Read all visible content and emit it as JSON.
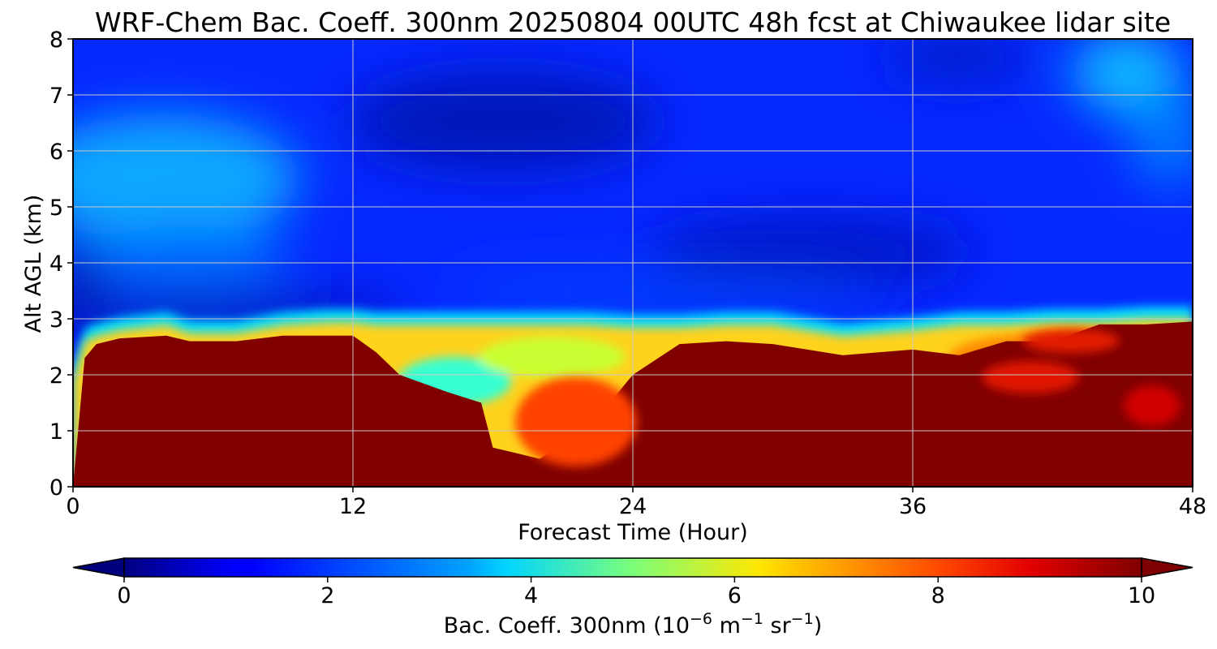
{
  "chart_data": {
    "type": "heatmap",
    "title": "WRF-Chem Bac. Coeff. 300nm  20250804 00UTC 48h fcst at Chiwaukee lidar site",
    "xlabel": "Forecast Time (Hour)",
    "ylabel": "Alt AGL (km)",
    "xlim": [
      0,
      48
    ],
    "ylim": [
      0,
      8
    ],
    "xticks": [
      "0",
      "12",
      "24",
      "36",
      "48"
    ],
    "yticks": [
      "0",
      "1",
      "2",
      "3",
      "4",
      "5",
      "6",
      "7",
      "8"
    ],
    "grid": true,
    "colormap": "jet",
    "colorbar": {
      "label_main": "Bac. Coeff. 300nm  (10",
      "label_exp1": "−6",
      "label_mid": " m",
      "label_exp2": "−1",
      "label_mid2": " sr",
      "label_exp3": "−1",
      "label_end": ")",
      "range": [
        0,
        10
      ],
      "ticks": [
        "0",
        "2",
        "4",
        "6",
        "8",
        "10"
      ],
      "extend": "both"
    },
    "field": {
      "hours": [
        0,
        0.5,
        1,
        2,
        4,
        5,
        7,
        9,
        11,
        12,
        13,
        14,
        16,
        17.5,
        18,
        20,
        22,
        24,
        26,
        28,
        30,
        33,
        36,
        38,
        40,
        42,
        44,
        46,
        48
      ],
      "altitudes_km": [
        0,
        0.5,
        1,
        1.5,
        2,
        2.3,
        2.6,
        2.8,
        3,
        3.2,
        3.5,
        4,
        4.5,
        5,
        5.5,
        6,
        6.5,
        7,
        7.5,
        8
      ],
      "boundary_layer_top_km": [
        0.0,
        2.3,
        2.55,
        2.65,
        2.7,
        2.6,
        2.6,
        2.7,
        2.7,
        2.7,
        2.4,
        2.0,
        1.7,
        1.5,
        0.7,
        0.5,
        1.0,
        2.0,
        2.55,
        2.6,
        2.55,
        2.35,
        2.45,
        2.35,
        2.6,
        2.6,
        2.9,
        2.9,
        2.95
      ],
      "aerosol_top_km": [
        2.0,
        2.7,
        2.8,
        2.9,
        3.0,
        2.85,
        2.85,
        3.0,
        3.05,
        3.05,
        3.0,
        3.0,
        3.0,
        3.0,
        3.0,
        3.0,
        3.0,
        2.95,
        2.95,
        3.0,
        3.0,
        2.8,
        2.9,
        3.0,
        3.0,
        3.05,
        3.05,
        3.1,
        3.1
      ]
    }
  }
}
